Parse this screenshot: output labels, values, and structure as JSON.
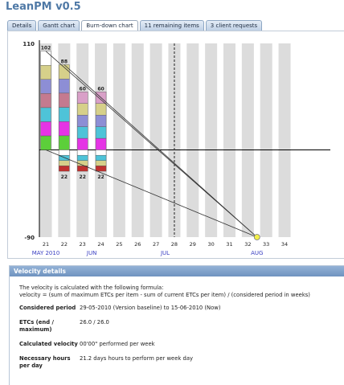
{
  "app": {
    "title": "LeanPM v0.5"
  },
  "tabs": [
    {
      "label": "Details",
      "active": false
    },
    {
      "label": "Gantt chart",
      "active": false
    },
    {
      "label": "Burn-down chart",
      "active": true
    },
    {
      "label": "11 remaining items",
      "active": false
    },
    {
      "label": "3 client requests",
      "active": false
    }
  ],
  "chart_data": {
    "type": "bar",
    "title": "",
    "y_ticks": [
      {
        "label": "110",
        "value": 110
      },
      {
        "label": "-90",
        "value": -90
      }
    ],
    "ylim": [
      -90,
      110
    ],
    "x_ticks": [
      "21",
      "22",
      "23",
      "24",
      "25",
      "26",
      "27",
      "28",
      "29",
      "30",
      "31",
      "32",
      "33",
      "34"
    ],
    "month_labels": [
      {
        "label": "MAY 2010",
        "at": 21
      },
      {
        "label": "JUN",
        "at": 23.5
      },
      {
        "label": "JUL",
        "at": 27.5
      },
      {
        "label": "AUG",
        "at": 32.5
      }
    ],
    "today_marker": 28,
    "bars": [
      {
        "x": 21,
        "top_label": "102",
        "bottom_label": "",
        "top": 102,
        "bottom": 0,
        "segments": [
          "#5ccf3a",
          "#e534e5",
          "#4ec3d8",
          "#c57a8f",
          "#8d8ed5",
          "#d6d08a",
          "#ffffff"
        ]
      },
      {
        "x": 22,
        "top_label": "88",
        "bottom_label": "22",
        "top": 88,
        "bottom": -22,
        "segments": [
          "#5ccf3a",
          "#e534e5",
          "#4ec3d8",
          "#c57a8f",
          "#8d8ed5",
          "#d6d08a"
        ]
      },
      {
        "x": 23,
        "top_label": "60",
        "bottom_label": "22",
        "top": 60,
        "bottom": -22,
        "segments": [
          "#e534e5",
          "#4ec3d8",
          "#8d8ed5",
          "#d6d08a",
          "#d9a0c8"
        ]
      },
      {
        "x": 24,
        "top_label": "60",
        "bottom_label": "22",
        "top": 60,
        "bottom": -22,
        "segments": [
          "#e534e5",
          "#4ec3d8",
          "#8d8ed5",
          "#d6d08a",
          "#d9a0c8"
        ]
      }
    ],
    "trend_lines": [
      {
        "from": [
          21,
          102
        ],
        "to": [
          32.5,
          -90
        ]
      },
      {
        "from": [
          21,
          0
        ],
        "to": [
          32.5,
          -90
        ]
      },
      {
        "from": [
          22,
          88
        ],
        "to": [
          32.5,
          -90
        ]
      }
    ],
    "target_point": {
      "x": 32.5,
      "y": -90
    }
  },
  "velocity": {
    "title": "Velocity details",
    "formula_intro": "The velocity is calculated with the following formula:",
    "formula": "velocity = (sum of maximum ETCs per item - sum of current ETCs per item) / (considered period in weeks)",
    "rows": [
      {
        "label": "Considered period",
        "value": "29-05-2010 (Version baseline) to 15-06-2010 (Now)"
      },
      {
        "label": "ETCs (end / maximum)",
        "value": "26.0 / 26.0"
      },
      {
        "label": "Calculated velocity",
        "value": "00'00\" performed per week"
      },
      {
        "label": "Necessary hours per day",
        "value": "21.2 days hours to perform per week day"
      }
    ]
  },
  "colors": {
    "accent": "#4f79a6",
    "grid_band": "#dcdcdc",
    "month_label": "#3a3fc2",
    "bar_bottom": "#c0312f",
    "target": "#f3f04a"
  }
}
